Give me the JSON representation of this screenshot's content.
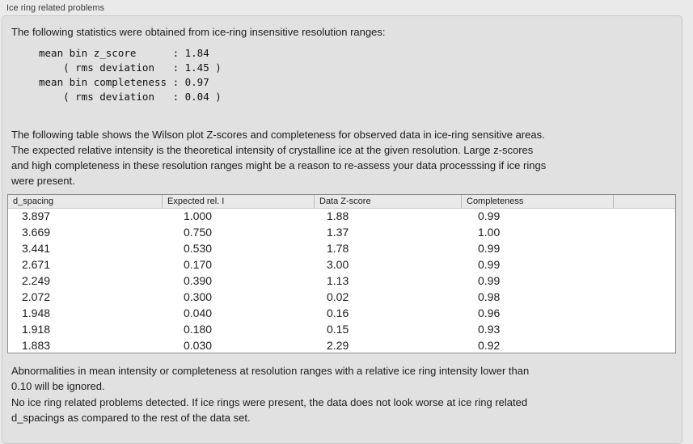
{
  "panel": {
    "title": "Ice ring related problems"
  },
  "sections": {
    "intro": "The following statistics were obtained from ice-ring insensitive resolution ranges:",
    "stats": "mean bin z_score      : 1.84\n    ( rms deviation   : 1.45 )\nmean bin completeness : 0.97\n    ( rms deviation   : 0.04 )",
    "table_caption": "The following table shows the Wilson plot Z-scores and completeness for observed data in ice-ring sensitive areas.\nThe expected relative intensity is the theoretical intensity of crystalline ice at the given resolution. Large z-scores\nand high completeness in these resolution ranges might be a reason to re-assess your data processsing if ice rings\nwere present.",
    "note_ignore": "Abnormalities in mean intensity or completeness at resolution ranges with a relative ice ring intensity lower than\n0.10 will be ignored.",
    "note_result": "No ice ring related problems detected. If ice rings were present, the data does not look worse at ice ring related\nd_spacings as compared to the rest of the data set."
  },
  "table": {
    "columns": [
      "d_spacing",
      "Expected rel. I",
      "Data Z-score",
      "Completeness",
      ""
    ],
    "rows": [
      [
        "3.897",
        "1.000",
        "1.88",
        "0.99"
      ],
      [
        "3.669",
        "0.750",
        "1.37",
        "1.00"
      ],
      [
        "3.441",
        "0.530",
        "1.78",
        "0.99"
      ],
      [
        "2.671",
        "0.170",
        "3.00",
        "0.99"
      ],
      [
        "2.249",
        "0.390",
        "1.13",
        "0.99"
      ],
      [
        "2.072",
        "0.300",
        "0.02",
        "0.98"
      ],
      [
        "1.948",
        "0.040",
        "0.16",
        "0.96"
      ],
      [
        "1.918",
        "0.180",
        "0.15",
        "0.93"
      ],
      [
        "1.883",
        "0.030",
        "2.29",
        "0.92"
      ]
    ]
  },
  "colors": {
    "page_bg": "#eaeaea",
    "panel_bg": "#e1e1e1",
    "panel_border": "#c9c9c9",
    "table_border": "#8c8c8c",
    "table_bg": "#ffffff",
    "header_bg": "#e9e9e9",
    "text": "#1c1c1c"
  }
}
